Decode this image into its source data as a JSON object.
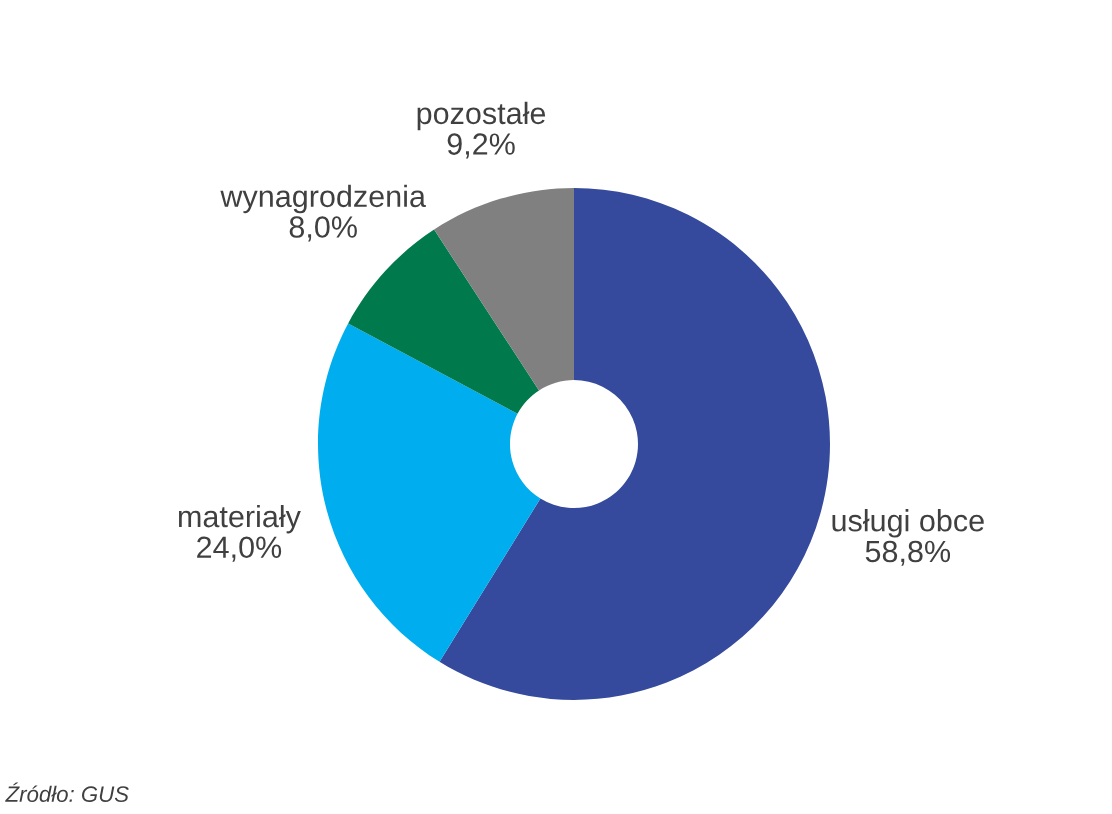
{
  "chart_data": {
    "type": "donut",
    "categories": [
      "usługi obce",
      "materiały",
      "wynagrodzenia",
      "pozostałe"
    ],
    "values": [
      58.8,
      24.0,
      8.0,
      9.2
    ],
    "value_labels": [
      "58,8%",
      "24,0%",
      "8,0%",
      "9,2%"
    ],
    "colors": [
      "#354a9c",
      "#00aeef",
      "#007a4d",
      "#808080"
    ],
    "annotations": [
      "Źródło: GUS"
    ]
  }
}
